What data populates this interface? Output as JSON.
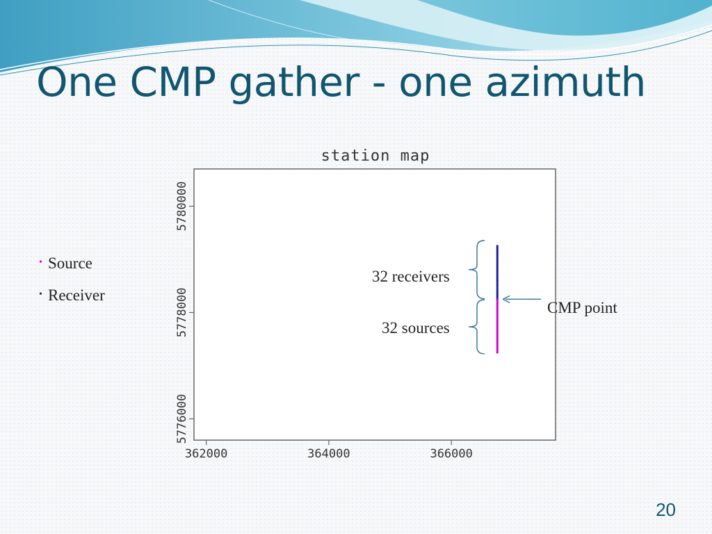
{
  "slide": {
    "title": "One CMP gather - one azimuth",
    "page_number": "20",
    "colors": {
      "title": "#11566f",
      "accent": "#1f7a99",
      "source": "#d100d1",
      "receiver": "#1a1aa8"
    }
  },
  "legend": [
    {
      "bullet": "•",
      "label": "Source",
      "bullet_color": "#d100d1"
    },
    {
      "bullet": "•",
      "label": "Receiver",
      "bullet_color": "#1a1aa8"
    }
  ],
  "annotations": {
    "receivers": "32 receivers",
    "sources": "32 sources",
    "cmp_point": "CMP point"
  },
  "chart_data": {
    "type": "scatter",
    "title": "station map",
    "xlabel": "",
    "ylabel": "",
    "xlim": [
      361800,
      367700
    ],
    "ylim": [
      5775600,
      5780700
    ],
    "x_ticks": [
      362000,
      364000,
      366000
    ],
    "y_ticks": [
      5776000,
      5778000,
      5780000
    ],
    "x_tick_labels": [
      "362000",
      "364000",
      "366000"
    ],
    "y_tick_labels": [
      "5776000",
      "5778000",
      "5780000"
    ],
    "grid": false,
    "series": [
      {
        "name": "Receiver",
        "color": "#1a1aa8",
        "x": 366750,
        "y_start": 5778260,
        "y_end": 5779250,
        "count": 32
      },
      {
        "name": "Source",
        "color": "#d100d1",
        "x": 366750,
        "y_start": 5777250,
        "y_end": 5778240,
        "count": 32
      }
    ],
    "cmp_point": {
      "x": 366750,
      "y": 5778250
    }
  }
}
